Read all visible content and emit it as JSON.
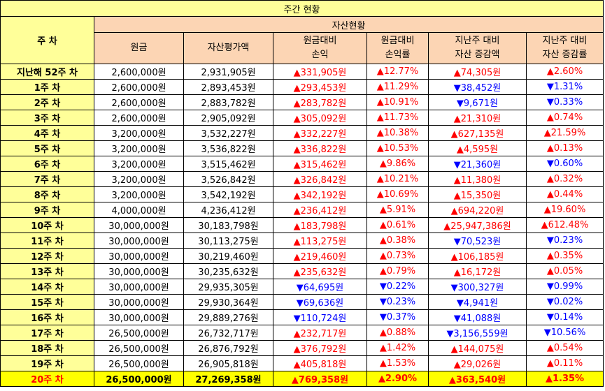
{
  "title": "주간 현황",
  "headers": {
    "week": "주 차",
    "asset_group": "자산현황",
    "principal": "원금",
    "valuation": "자산평가액",
    "pl_line1": "원금대비",
    "pl_line2": "손익",
    "plr_line1": "원금대비",
    "plr_line2": "손익률",
    "wchg_line1": "지난주 대비",
    "wchg_line2": "자산 증감액",
    "wchgr_line1": "지난주 대비",
    "wchgr_line2": "자산 증감률"
  },
  "colors": {
    "up": "#ff0000",
    "down": "#0000ff",
    "header_bg": "#fcd5b4",
    "week_bg": "#ffff99",
    "highlight_bg": "#ffff00"
  },
  "rows": [
    {
      "week": "지난해 52주 차",
      "principal": "2,600,000원",
      "valuation": "2,931,905원",
      "pl": "▲331,905원",
      "pl_dir": "up",
      "plr": "▲12.77%",
      "plr_dir": "up",
      "wchg": "▲74,305원",
      "wchg_dir": "up",
      "wchgr": "▲2.60%",
      "wchgr_dir": "up"
    },
    {
      "week": "1주 차",
      "principal": "2,600,000원",
      "valuation": "2,893,453원",
      "pl": "▲293,453원",
      "pl_dir": "up",
      "plr": "▲11.29%",
      "plr_dir": "up",
      "wchg": "▼38,452원",
      "wchg_dir": "down",
      "wchgr": "▼1.31%",
      "wchgr_dir": "down"
    },
    {
      "week": "2주 차",
      "principal": "2,600,000원",
      "valuation": "2,883,782원",
      "pl": "▲283,782원",
      "pl_dir": "up",
      "plr": "▲10.91%",
      "plr_dir": "up",
      "wchg": "▼9,671원",
      "wchg_dir": "down",
      "wchgr": "▼0.33%",
      "wchgr_dir": "down"
    },
    {
      "week": "3주 차",
      "principal": "2,600,000원",
      "valuation": "2,905,092원",
      "pl": "▲305,092원",
      "pl_dir": "up",
      "plr": "▲11.73%",
      "plr_dir": "up",
      "wchg": "▲21,310원",
      "wchg_dir": "up",
      "wchgr": "▲0.74%",
      "wchgr_dir": "up"
    },
    {
      "week": "4주 차",
      "principal": "3,200,000원",
      "valuation": "3,532,227원",
      "pl": "▲332,227원",
      "pl_dir": "up",
      "plr": "▲10.38%",
      "plr_dir": "up",
      "wchg": "▲627,135원",
      "wchg_dir": "up",
      "wchgr": "▲21.59%",
      "wchgr_dir": "up"
    },
    {
      "week": "5주 차",
      "principal": "3,200,000원",
      "valuation": "3,536,822원",
      "pl": "▲336,822원",
      "pl_dir": "up",
      "plr": "▲10.53%",
      "plr_dir": "up",
      "wchg": "▲4,595원",
      "wchg_dir": "up",
      "wchgr": "▲0.13%",
      "wchgr_dir": "up"
    },
    {
      "week": "6주 차",
      "principal": "3,200,000원",
      "valuation": "3,515,462원",
      "pl": "▲315,462원",
      "pl_dir": "up",
      "plr": "▲9.86%",
      "plr_dir": "up",
      "wchg": "▼21,360원",
      "wchg_dir": "down",
      "wchgr": "▼0.60%",
      "wchgr_dir": "down"
    },
    {
      "week": "7주 차",
      "principal": "3,200,000원",
      "valuation": "3,526,842원",
      "pl": "▲326,842원",
      "pl_dir": "up",
      "plr": "▲10.21%",
      "plr_dir": "up",
      "wchg": "▲11,380원",
      "wchg_dir": "up",
      "wchgr": "▲0.32%",
      "wchgr_dir": "up"
    },
    {
      "week": "8주 차",
      "principal": "3,200,000원",
      "valuation": "3,542,192원",
      "pl": "▲342,192원",
      "pl_dir": "up",
      "plr": "▲10.69%",
      "plr_dir": "up",
      "wchg": "▲15,350원",
      "wchg_dir": "up",
      "wchgr": "▲0.44%",
      "wchgr_dir": "up"
    },
    {
      "week": "9주 차",
      "principal": "4,000,000원",
      "valuation": "4,236,412원",
      "pl": "▲236,412원",
      "pl_dir": "up",
      "plr": "▲5.91%",
      "plr_dir": "up",
      "wchg": "▲694,220원",
      "wchg_dir": "up",
      "wchgr": "▲19.60%",
      "wchgr_dir": "up"
    },
    {
      "week": "10주 차",
      "principal": "30,000,000원",
      "valuation": "30,183,798원",
      "pl": "▲183,798원",
      "pl_dir": "up",
      "plr": "▲0.61%",
      "plr_dir": "up",
      "wchg": "▲25,947,386원",
      "wchg_dir": "up",
      "wchgr": "▲612.48%",
      "wchgr_dir": "up"
    },
    {
      "week": "11주 차",
      "principal": "30,000,000원",
      "valuation": "30,113,275원",
      "pl": "▲113,275원",
      "pl_dir": "up",
      "plr": "▲0.38%",
      "plr_dir": "up",
      "wchg": "▼70,523원",
      "wchg_dir": "down",
      "wchgr": "▼0.23%",
      "wchgr_dir": "down"
    },
    {
      "week": "12주 차",
      "principal": "30,000,000원",
      "valuation": "30,219,460원",
      "pl": "▲219,460원",
      "pl_dir": "up",
      "plr": "▲0.73%",
      "plr_dir": "up",
      "wchg": "▲106,185원",
      "wchg_dir": "up",
      "wchgr": "▲0.35%",
      "wchgr_dir": "up"
    },
    {
      "week": "13주 차",
      "principal": "30,000,000원",
      "valuation": "30,235,632원",
      "pl": "▲235,632원",
      "pl_dir": "up",
      "plr": "▲0.79%",
      "plr_dir": "up",
      "wchg": "▲16,172원",
      "wchg_dir": "up",
      "wchgr": "▲0.05%",
      "wchgr_dir": "up"
    },
    {
      "week": "14주 차",
      "principal": "30,000,000원",
      "valuation": "29,935,305원",
      "pl": "▼64,695원",
      "pl_dir": "down",
      "plr": "▼0.22%",
      "plr_dir": "down",
      "wchg": "▼300,327원",
      "wchg_dir": "down",
      "wchgr": "▼0.99%",
      "wchgr_dir": "down"
    },
    {
      "week": "15주 차",
      "principal": "30,000,000원",
      "valuation": "29,930,364원",
      "pl": "▼69,636원",
      "pl_dir": "down",
      "plr": "▼0.23%",
      "plr_dir": "down",
      "wchg": "▼4,941원",
      "wchg_dir": "down",
      "wchgr": "▼0.02%",
      "wchgr_dir": "down"
    },
    {
      "week": "16주 차",
      "principal": "30,000,000원",
      "valuation": "29,889,276원",
      "pl": "▼110,724원",
      "pl_dir": "down",
      "plr": "▼0.37%",
      "plr_dir": "down",
      "wchg": "▼41,088원",
      "wchg_dir": "down",
      "wchgr": "▼0.14%",
      "wchgr_dir": "down"
    },
    {
      "week": "17주 차",
      "principal": "26,500,000원",
      "valuation": "26,732,717원",
      "pl": "▲232,717원",
      "pl_dir": "up",
      "plr": "▲0.88%",
      "plr_dir": "up",
      "wchg": "▼3,156,559원",
      "wchg_dir": "down",
      "wchgr": "▼10.56%",
      "wchgr_dir": "down"
    },
    {
      "week": "18주 차",
      "principal": "26,500,000원",
      "valuation": "26,876,792원",
      "pl": "▲376,792원",
      "pl_dir": "up",
      "plr": "▲1.42%",
      "plr_dir": "up",
      "wchg": "▲144,075원",
      "wchg_dir": "up",
      "wchgr": "▲0.54%",
      "wchgr_dir": "up"
    },
    {
      "week": "19주 차",
      "principal": "26,500,000원",
      "valuation": "26,905,818원",
      "pl": "▲405,818원",
      "pl_dir": "up",
      "plr": "▲1.53%",
      "plr_dir": "up",
      "wchg": "▲29,026원",
      "wchg_dir": "up",
      "wchgr": "▲0.11%",
      "wchgr_dir": "up"
    }
  ],
  "current": {
    "week": "20주 차",
    "principal": "26,500,000원",
    "valuation": "27,269,358원",
    "pl": "▲769,358원",
    "pl_dir": "up",
    "plr": "▲2.90%",
    "plr_dir": "up",
    "wchg": "▲363,540원",
    "wchg_dir": "up",
    "wchgr": "▲1.35%",
    "wchgr_dir": "up"
  }
}
